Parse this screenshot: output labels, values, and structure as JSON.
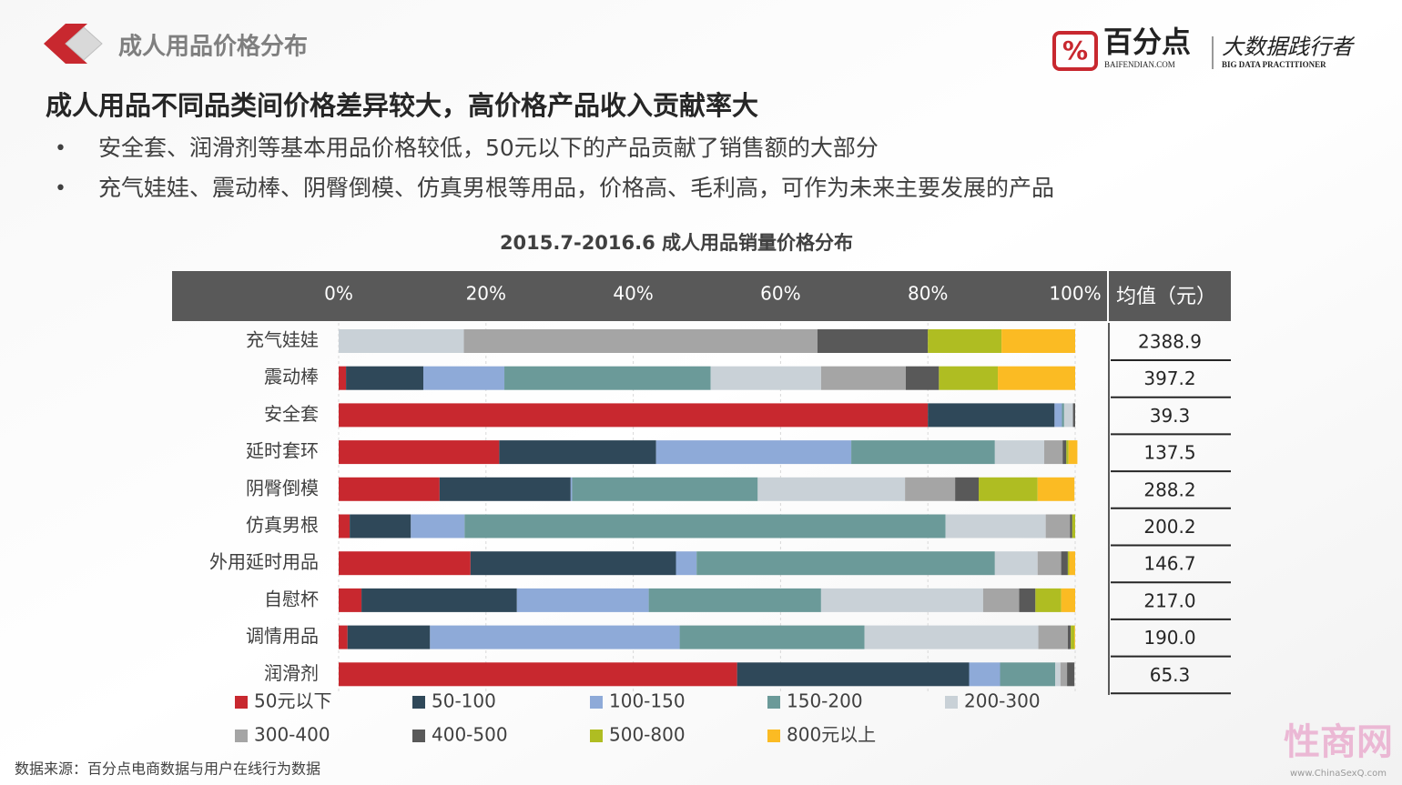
{
  "header": {
    "title": "成人用品价格分布",
    "brand": "百分点",
    "brand_url": "BAIFENDIAN.COM",
    "slogan": "大数据践行者",
    "slogan_en": "BIG DATA PRACTITIONER"
  },
  "headline": "成人用品不同品类间价格差异较大，高价格产品收入贡献率大",
  "bullets": [
    "安全套、润滑剂等基本用品价格较低，50元以下的产品贡献了销售额的大部分",
    "充气娃娃、震动棒、阴臀倒模、仿真男根等用品，价格高、毛利高，可作为未来主要发展的产品"
  ],
  "chart_data": {
    "type": "stacked_bar",
    "title": "2015.7-2016.6 成人用品销量价格分布",
    "categories": [
      "充气娃娃",
      "震动棒",
      "安全套",
      "延时套环",
      "阴臀倒模",
      "仿真男根",
      "外用延时用品",
      "自慰杯",
      "调情用品",
      "润滑剂"
    ],
    "series": [
      {
        "name": "50元以下",
        "color": "#c8282f",
        "values": [
          0,
          1,
          80,
          21.8,
          13.7,
          1.5,
          17.9,
          3.1,
          1.2,
          54.1
        ]
      },
      {
        "name": "50-100",
        "color": "#2f4859",
        "values": [
          0,
          10.5,
          17.2,
          21.3,
          17.8,
          8.3,
          27.9,
          21.1,
          11.2,
          31.5
        ]
      },
      {
        "name": "100-150",
        "color": "#8eaad8",
        "values": [
          0,
          11,
          1,
          26.5,
          0.2,
          7.3,
          2.8,
          17.9,
          33.9,
          4.2
        ]
      },
      {
        "name": "150-200",
        "color": "#6b9a99",
        "values": [
          0,
          28,
          0.3,
          19.5,
          25.2,
          65.3,
          40.5,
          23.4,
          25.1,
          7.5
        ]
      },
      {
        "name": "200-300",
        "color": "#c9d1d7",
        "values": [
          17,
          15,
          1.2,
          6.7,
          20,
          13.6,
          5.8,
          22,
          23.6,
          0.7
        ]
      },
      {
        "name": "300-400",
        "color": "#a5a5a5",
        "values": [
          48,
          11.5,
          0,
          2.5,
          6.8,
          3.3,
          3.2,
          4.9,
          4,
          0.9
        ]
      },
      {
        "name": "400-500",
        "color": "#595959",
        "values": [
          15,
          4.5,
          0.3,
          0.5,
          3.2,
          0.3,
          0.9,
          2.2,
          0.4,
          1
        ]
      },
      {
        "name": "500-800",
        "color": "#afbd22",
        "values": [
          10,
          8,
          0,
          0.3,
          8,
          0.4,
          0.2,
          3.5,
          0.5,
          0
        ]
      },
      {
        "name": "800元以上",
        "color": "#fbbb23",
        "values": [
          10,
          10.5,
          0,
          1.2,
          5,
          0,
          0.8,
          1.9,
          0.1,
          0
        ]
      }
    ],
    "xlim": [
      0,
      100
    ],
    "xticks": [
      {
        "value": 0,
        "label": "0%"
      },
      {
        "value": 20,
        "label": "20%"
      },
      {
        "value": 40,
        "label": "40%"
      },
      {
        "value": 60,
        "label": "60%"
      },
      {
        "value": 80,
        "label": "80%"
      },
      {
        "value": 100,
        "label": "100%"
      }
    ],
    "grid": true,
    "mean_header": "均值（元）",
    "mean_values": [
      2388.9,
      397.2,
      39.3,
      137.5,
      288.2,
      200.2,
      146.7,
      217.0,
      190.0,
      65.3
    ],
    "mean_value_labels": [
      "2388.9",
      "397.2",
      "39.3",
      "137.5",
      "288.2",
      "200.2",
      "146.7",
      "217.0",
      "190.0",
      "65.3"
    ]
  },
  "source": "数据来源：百分点电商数据与用户在线行为数据",
  "watermark": {
    "text": "性商网",
    "url": "www.ChinaSexQ.com"
  }
}
